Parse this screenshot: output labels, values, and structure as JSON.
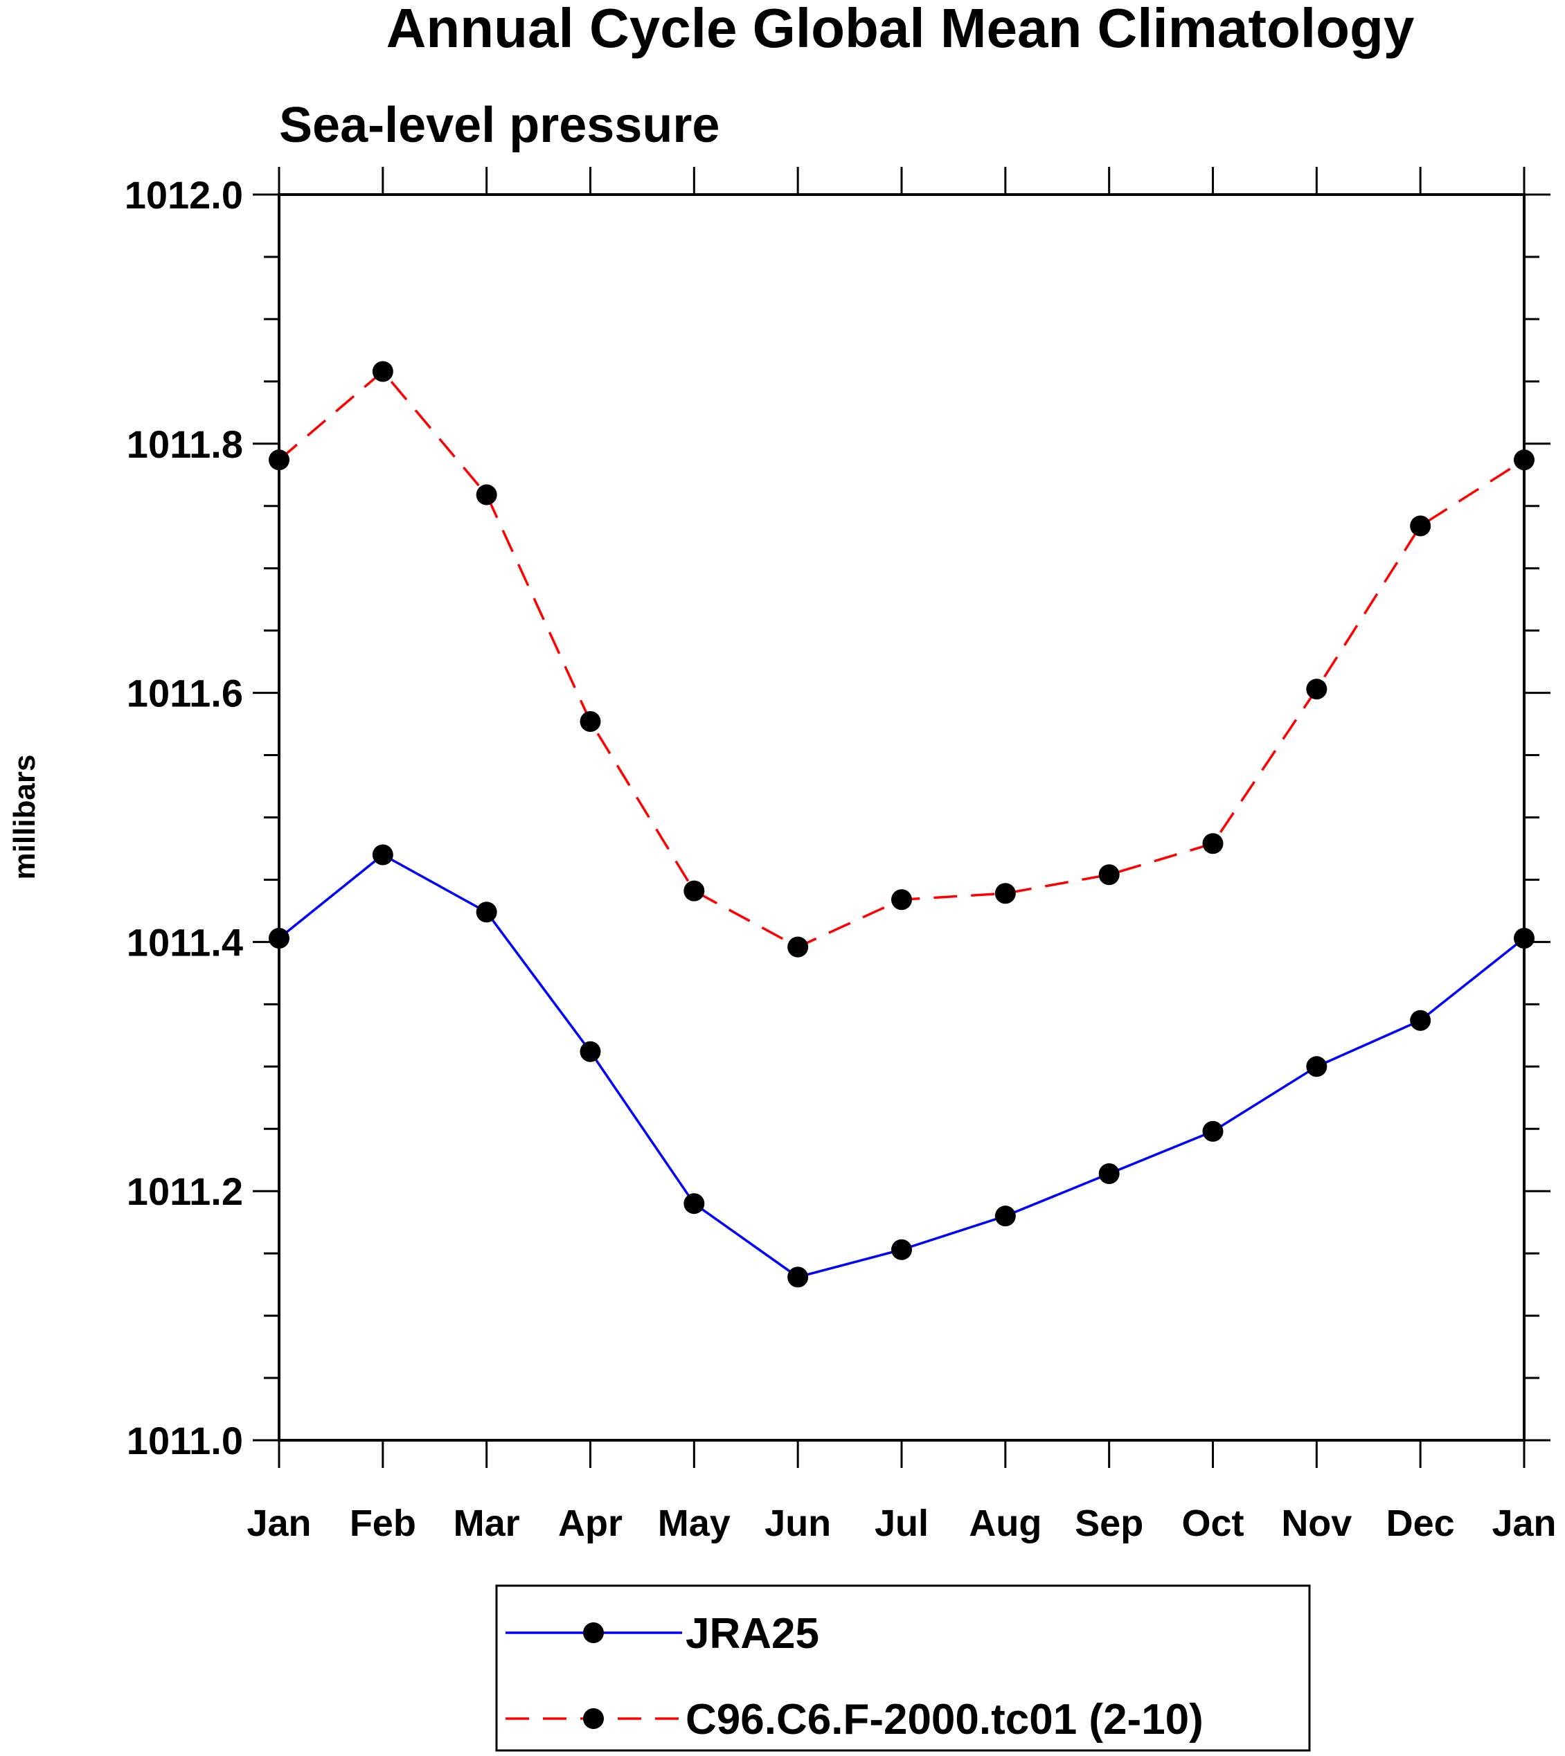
{
  "chart_data": {
    "type": "line",
    "title": "Annual Cycle Global Mean Climatology",
    "subtitle": "Sea-level pressure",
    "xlabel": "",
    "ylabel": "millibars",
    "categories": [
      "Jan",
      "Feb",
      "Mar",
      "Apr",
      "May",
      "Jun",
      "Jul",
      "Aug",
      "Sep",
      "Oct",
      "Nov",
      "Dec",
      "Jan"
    ],
    "ylim": [
      1011.0,
      1012.0
    ],
    "yticks": [
      "1011.0",
      "1011.2",
      "1011.4",
      "1011.6",
      "1011.8",
      "1012.0"
    ],
    "ytick_values": [
      1011.0,
      1011.2,
      1011.4,
      1011.6,
      1011.8,
      1012.0
    ],
    "grid": false,
    "legend_position": "bottom",
    "series": [
      {
        "name": "JRA25",
        "color": "#0000ff",
        "dash": "solid",
        "values": [
          1011.403,
          1011.47,
          1011.424,
          1011.312,
          1011.19,
          1011.131,
          1011.153,
          1011.18,
          1011.214,
          1011.248,
          1011.3,
          1011.337,
          1011.403
        ]
      },
      {
        "name": "C96.C6.F-2000.tc01 (2-10)",
        "color": "#ff0000",
        "dash": "dashed",
        "values": [
          1011.787,
          1011.858,
          1011.759,
          1011.577,
          1011.441,
          1011.396,
          1011.434,
          1011.439,
          1011.454,
          1011.479,
          1011.603,
          1011.734,
          1011.787
        ]
      }
    ]
  }
}
